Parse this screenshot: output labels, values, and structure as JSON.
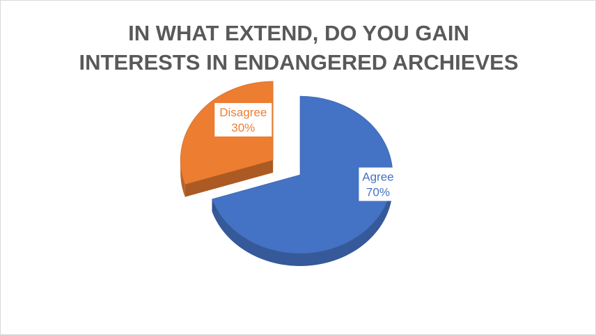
{
  "chart_data": {
    "type": "pie",
    "title_lines": [
      "IN WHAT EXTEND, DO YOU GAIN",
      "INTERESTS IN ENDANGERED ARCHIEVES"
    ],
    "categories": [
      "Agree",
      "Disagree"
    ],
    "values": [
      70,
      30
    ],
    "value_labels": [
      "70%",
      "30%"
    ],
    "colors": [
      "#4472c4",
      "#ed7d31"
    ],
    "exploded": "Disagree",
    "style": "3d",
    "legend": "none"
  }
}
